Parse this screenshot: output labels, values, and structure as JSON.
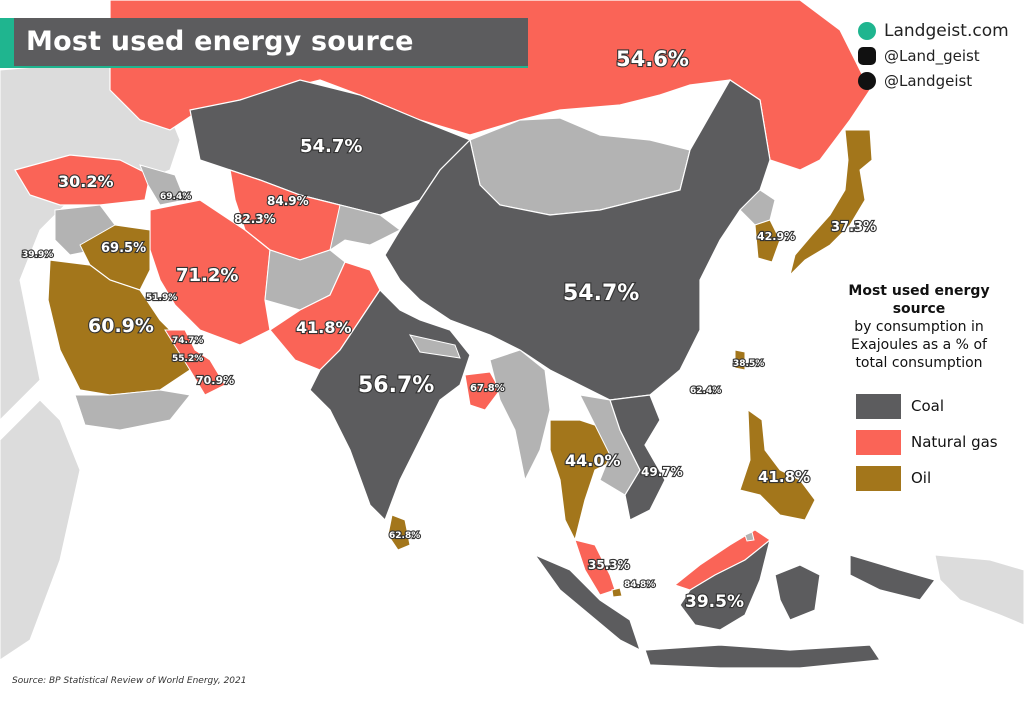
{
  "title": "Most used energy source",
  "brand": {
    "site": "Landgeist.com",
    "instagram": "@Land_geist",
    "twitter": "@Landgeist",
    "site_icon": "globe-icon",
    "instagram_icon": "instagram-icon",
    "twitter_icon": "twitter-icon"
  },
  "legend": {
    "title": "Most used energy source",
    "subtitle": "by consumption in Exajoules as a % of total consumption",
    "items": [
      {
        "label": "Coal",
        "color": "#5c5c5e"
      },
      {
        "label": "Natural gas",
        "color": "#fa6457"
      },
      {
        "label": "Oil",
        "color": "#a3761b"
      }
    ]
  },
  "colors": {
    "coal": "#5c5c5e",
    "gas": "#fa6457",
    "oil": "#a3761b",
    "nodata": "#b3b3b3",
    "outside": "#dcdcdc",
    "sea": "#ffffff",
    "accent": "#1fb58f"
  },
  "regions": [
    {
      "value": "54.6%",
      "source": "Natural gas"
    },
    {
      "value": "54.7%",
      "source": "Coal"
    },
    {
      "value": "30.2%",
      "source": "Natural gas"
    },
    {
      "value": "69.4%",
      "source": "Natural gas"
    },
    {
      "value": "84.9%",
      "source": "Natural gas"
    },
    {
      "value": "82.3%",
      "source": "Natural gas"
    },
    {
      "value": "39.9%",
      "source": "Natural gas"
    },
    {
      "value": "69.5%",
      "source": "Oil"
    },
    {
      "value": "71.2%",
      "source": "Natural gas"
    },
    {
      "value": "51.9%",
      "source": "Natural gas"
    },
    {
      "value": "60.9%",
      "source": "Oil"
    },
    {
      "value": "74.7%",
      "source": "Natural gas"
    },
    {
      "value": "55.2%",
      "source": "Natural gas"
    },
    {
      "value": "70.9%",
      "source": "Natural gas"
    },
    {
      "value": "41.8%",
      "source": "Natural gas"
    },
    {
      "value": "54.7%",
      "source": "Coal"
    },
    {
      "value": "56.7%",
      "source": "Coal"
    },
    {
      "value": "67.8%",
      "source": "Natural gas"
    },
    {
      "value": "62.8%",
      "source": "Oil"
    },
    {
      "value": "42.9%",
      "source": "Oil"
    },
    {
      "value": "37.3%",
      "source": "Oil"
    },
    {
      "value": "38.5%",
      "source": "Oil"
    },
    {
      "value": "62.4%",
      "source": "Oil"
    },
    {
      "value": "44.0%",
      "source": "Oil"
    },
    {
      "value": "49.7%",
      "source": "Coal"
    },
    {
      "value": "41.8%",
      "source": "Oil"
    },
    {
      "value": "35.3%",
      "source": "Natural gas"
    },
    {
      "value": "84.8%",
      "source": "Oil"
    },
    {
      "value": "39.5%",
      "source": "Coal"
    }
  ],
  "source_note": "Source: BP Statistical Review of World Energy, 2021"
}
